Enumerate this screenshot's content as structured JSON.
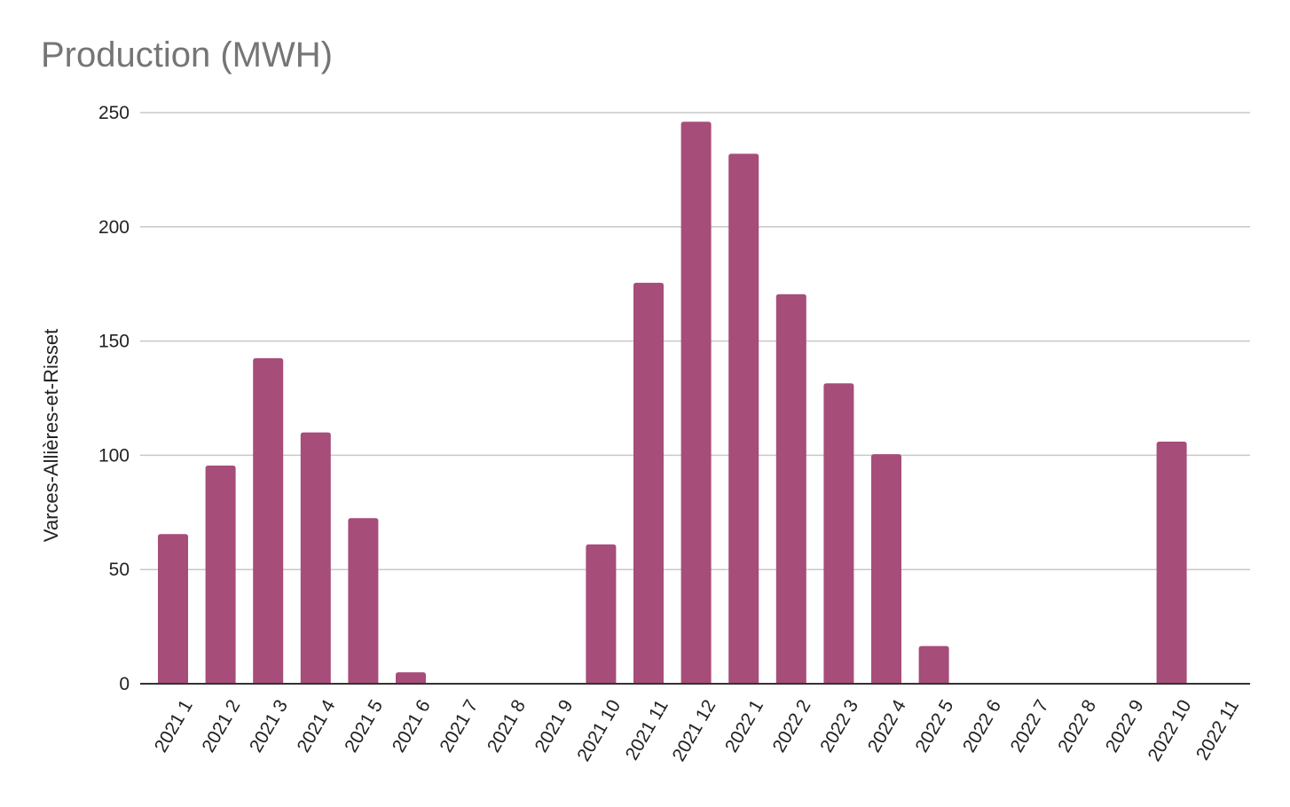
{
  "chart_data": {
    "type": "bar",
    "title": "Production (MWH)",
    "xlabel": "",
    "ylabel": "Varces-Allières-et-Risset",
    "ylim": [
      0,
      250
    ],
    "yticks": [
      0,
      50,
      100,
      150,
      200,
      250
    ],
    "grid": true,
    "legend": "none",
    "bar_color": "#a64d79",
    "categories": [
      "2021 1",
      "2021 2",
      "2021 3",
      "2021 4",
      "2021 5",
      "2021 6",
      "2021 7",
      "2021 8",
      "2021 9",
      "2021 10",
      "2021 11",
      "2021 12",
      "2022 1",
      "2022 2",
      "2022 3",
      "2022 4",
      "2022 5",
      "2022 6",
      "2022 7",
      "2022 8",
      "2022 9",
      "2022 10",
      "2022 11"
    ],
    "values": [
      65.5,
      95.5,
      142.5,
      110,
      72.5,
      5,
      0,
      0,
      0,
      61,
      175.5,
      246,
      232,
      170.5,
      131.5,
      100.5,
      16.5,
      0,
      0,
      0,
      0,
      106,
      0
    ]
  }
}
